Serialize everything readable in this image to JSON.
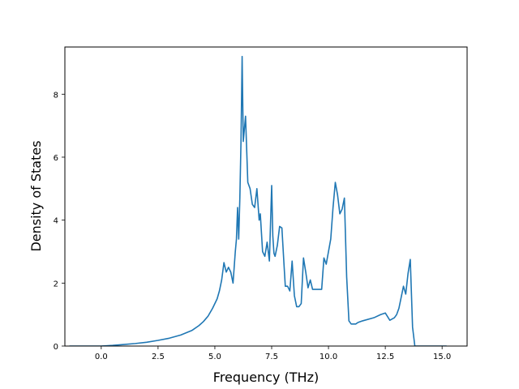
{
  "chart_data": {
    "type": "line",
    "title": "",
    "xlabel": "Frequency (THz)",
    "ylabel": "Density of States",
    "xlim": [
      -1.6,
      16.1
    ],
    "ylim": [
      0,
      9.5
    ],
    "x_ticks": [
      0.0,
      2.5,
      5.0,
      7.5,
      10.0,
      12.5,
      15.0
    ],
    "x_tick_labels": [
      "0.0",
      "2.5",
      "5.0",
      "7.5",
      "10.0",
      "12.5",
      "15.0"
    ],
    "y_ticks": [
      0,
      2,
      4,
      6,
      8
    ],
    "y_tick_labels": [
      "0",
      "2",
      "4",
      "6",
      "8"
    ],
    "grid": false,
    "legend": "none",
    "series": [
      {
        "color": "#1f77b4",
        "x": [
          -1.4,
          -1.0,
          -0.5,
          0.0,
          0.5,
          1.0,
          1.5,
          2.0,
          2.5,
          3.0,
          3.5,
          4.0,
          4.3,
          4.5,
          4.7,
          4.9,
          5.1,
          5.2,
          5.3,
          5.4,
          5.5,
          5.6,
          5.7,
          5.8,
          5.85,
          5.9,
          5.95,
          6.0,
          6.05,
          6.1,
          6.15,
          6.2,
          6.25,
          6.35,
          6.45,
          6.55,
          6.65,
          6.75,
          6.85,
          6.95,
          7.0,
          7.1,
          7.2,
          7.3,
          7.4,
          7.5,
          7.55,
          7.6,
          7.65,
          7.75,
          7.85,
          7.95,
          8.05,
          8.1,
          8.2,
          8.3,
          8.4,
          8.5,
          8.6,
          8.7,
          8.8,
          8.9,
          9.0,
          9.1,
          9.2,
          9.3,
          9.4,
          9.5,
          9.6,
          9.7,
          9.8,
          9.9,
          10.0,
          10.1,
          10.2,
          10.3,
          10.4,
          10.5,
          10.6,
          10.7,
          10.8,
          10.9,
          11.0,
          11.1,
          11.2,
          11.3,
          11.5,
          12.0,
          12.3,
          12.5,
          12.7,
          12.9,
          13.0,
          13.1,
          13.2,
          13.3,
          13.4,
          13.5,
          13.6,
          13.7,
          13.8,
          13.9,
          14.2,
          14.6,
          15.0,
          15.2
        ],
        "y": [
          0.0,
          0.0,
          0.0,
          0.0,
          0.02,
          0.05,
          0.08,
          0.12,
          0.18,
          0.25,
          0.35,
          0.5,
          0.65,
          0.78,
          0.95,
          1.2,
          1.5,
          1.75,
          2.1,
          2.65,
          2.35,
          2.5,
          2.35,
          2.0,
          2.5,
          3.0,
          3.4,
          4.4,
          3.4,
          4.7,
          6.5,
          9.2,
          6.5,
          7.3,
          5.2,
          5.0,
          4.5,
          4.4,
          5.0,
          4.0,
          4.2,
          3.0,
          2.85,
          3.3,
          2.7,
          5.1,
          3.5,
          2.95,
          2.85,
          3.2,
          3.8,
          3.75,
          2.5,
          1.9,
          1.9,
          1.75,
          2.7,
          1.6,
          1.25,
          1.25,
          1.35,
          2.8,
          2.35,
          1.85,
          2.1,
          1.8,
          1.8,
          1.8,
          1.8,
          1.8,
          2.8,
          2.6,
          3.0,
          3.4,
          4.4,
          5.2,
          4.8,
          4.2,
          4.35,
          4.7,
          2.2,
          0.8,
          0.7,
          0.7,
          0.7,
          0.75,
          0.8,
          0.9,
          1.0,
          1.05,
          0.82,
          0.9,
          1.0,
          1.2,
          1.55,
          1.9,
          1.65,
          2.3,
          2.75,
          0.6,
          0.0,
          0.0,
          0.0,
          0.0,
          0.0,
          0.0
        ]
      }
    ]
  }
}
